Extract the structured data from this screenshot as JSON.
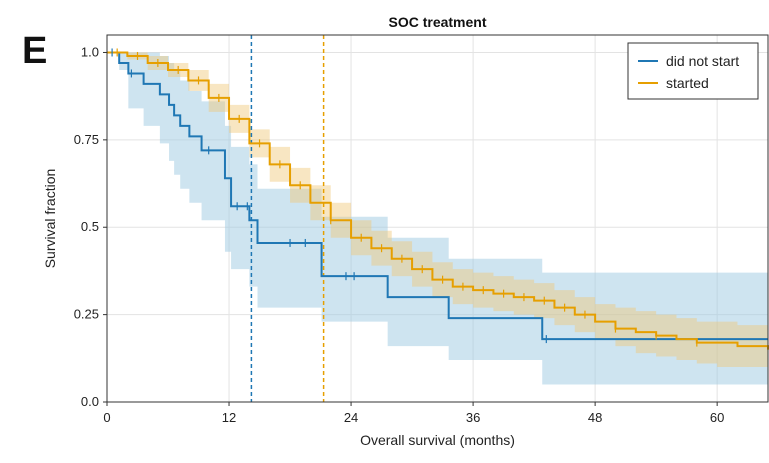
{
  "panel_letter": "E",
  "chart_data": {
    "type": "line",
    "subtype": "kaplan-meier survival curve with confidence bands",
    "title": "SOC treatment",
    "xlabel": "Overall survival (months)",
    "ylabel": "Survival fraction",
    "xlim": [
      0,
      65
    ],
    "ylim": [
      0,
      1.05
    ],
    "xticks": [
      0,
      12,
      24,
      36,
      48,
      60
    ],
    "yticks": [
      0.0,
      0.25,
      0.5,
      0.75,
      1.0
    ],
    "ytick_labels": [
      "0.0",
      "0.25",
      "0.5",
      "0.75",
      "1.0"
    ],
    "grid": true,
    "legend_position": "top-right",
    "series": [
      {
        "name": "did not start",
        "color": "#1f77b4",
        "band_color": "#9ecae1",
        "median_line_x": 14.2,
        "x": [
          0,
          1.2,
          2.1,
          3.6,
          5.2,
          6.1,
          6.6,
          7.2,
          8.1,
          9.3,
          11.6,
          12.2,
          14.0,
          14.8,
          21.1,
          27.6,
          33.6,
          42.8,
          65
        ],
        "y": [
          1.0,
          0.97,
          0.94,
          0.91,
          0.88,
          0.85,
          0.82,
          0.79,
          0.76,
          0.72,
          0.64,
          0.56,
          0.52,
          0.455,
          0.36,
          0.3,
          0.24,
          0.18,
          0.18
        ],
        "ci_lower": [
          1.0,
          0.95,
          0.84,
          0.79,
          0.74,
          0.69,
          0.65,
          0.61,
          0.57,
          0.52,
          0.43,
          0.38,
          0.33,
          0.27,
          0.23,
          0.16,
          0.12,
          0.05,
          0.05
        ],
        "ci_upper": [
          1.0,
          1.0,
          1.0,
          1.0,
          0.99,
          0.97,
          0.95,
          0.92,
          0.89,
          0.86,
          0.79,
          0.73,
          0.68,
          0.61,
          0.53,
          0.47,
          0.41,
          0.37,
          0.37
        ],
        "censor_x": [
          0.5,
          2.4,
          10.0,
          12.8,
          13.8,
          18.0,
          19.5,
          23.5,
          24.3,
          43.2
        ]
      },
      {
        "name": "started",
        "color": "#e69f00",
        "band_color": "#f0c878",
        "median_line_x": 21.3,
        "x": [
          0,
          2,
          4,
          6,
          8,
          10,
          12,
          14,
          16,
          18,
          20,
          22,
          24,
          26,
          28,
          30,
          32,
          34,
          36,
          38,
          40,
          42,
          44,
          46,
          48,
          50,
          52,
          54,
          56,
          58,
          60,
          62,
          65
        ],
        "y": [
          1.0,
          0.99,
          0.97,
          0.95,
          0.92,
          0.87,
          0.81,
          0.74,
          0.68,
          0.62,
          0.57,
          0.52,
          0.47,
          0.44,
          0.41,
          0.38,
          0.35,
          0.33,
          0.32,
          0.31,
          0.3,
          0.29,
          0.27,
          0.25,
          0.23,
          0.21,
          0.2,
          0.19,
          0.18,
          0.17,
          0.17,
          0.16,
          0.15
        ],
        "ci_lower": [
          1.0,
          0.98,
          0.95,
          0.93,
          0.89,
          0.83,
          0.77,
          0.7,
          0.63,
          0.57,
          0.52,
          0.47,
          0.42,
          0.39,
          0.36,
          0.33,
          0.3,
          0.28,
          0.27,
          0.26,
          0.25,
          0.24,
          0.22,
          0.2,
          0.18,
          0.16,
          0.14,
          0.13,
          0.12,
          0.11,
          0.1,
          0.1,
          0.09
        ],
        "ci_upper": [
          1.0,
          1.0,
          0.99,
          0.97,
          0.95,
          0.91,
          0.85,
          0.78,
          0.73,
          0.67,
          0.62,
          0.57,
          0.52,
          0.49,
          0.46,
          0.43,
          0.4,
          0.38,
          0.37,
          0.36,
          0.35,
          0.34,
          0.32,
          0.3,
          0.28,
          0.27,
          0.26,
          0.25,
          0.24,
          0.23,
          0.23,
          0.22,
          0.21
        ],
        "censor_x": [
          1,
          3,
          5,
          7,
          9,
          11,
          13,
          15,
          17,
          19,
          22,
          25,
          27,
          29,
          31,
          33,
          35,
          37,
          39,
          41,
          43,
          45,
          47,
          50,
          54,
          58
        ]
      }
    ]
  }
}
